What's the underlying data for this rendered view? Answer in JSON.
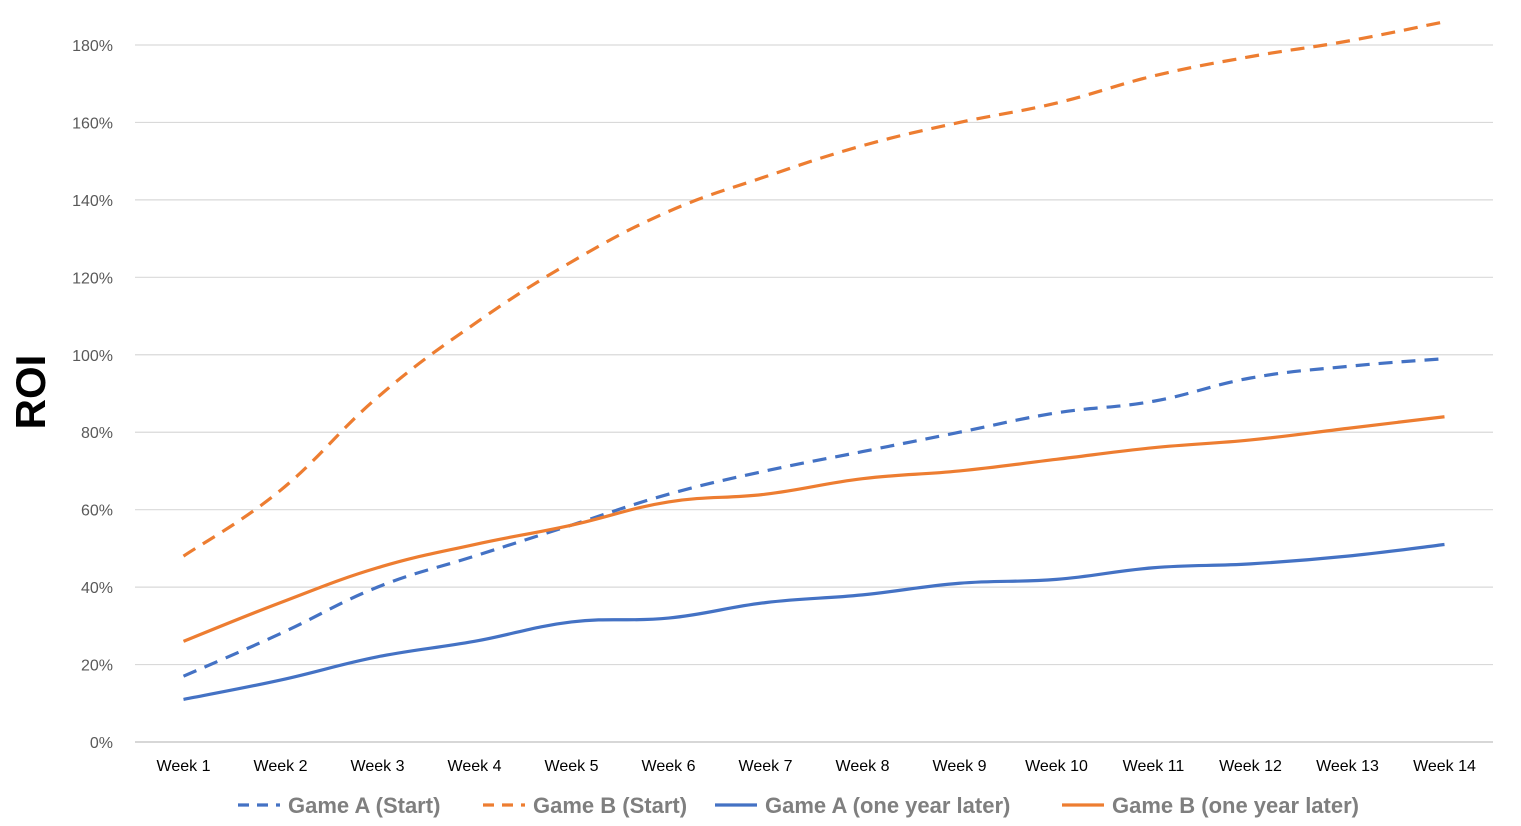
{
  "chart_data": {
    "type": "line",
    "title": "",
    "xlabel": "",
    "ylabel": "ROI",
    "ylim": [
      0,
      180
    ],
    "y_tick_step": 20,
    "y_unit_suffix": "%",
    "y_ticks": [
      "0%",
      "20%",
      "40%",
      "60%",
      "80%",
      "100%",
      "120%",
      "140%",
      "160%",
      "180%"
    ],
    "grid": true,
    "legend_position": "bottom",
    "categories": [
      "Week 1",
      "Week 2",
      "Week 3",
      "Week 4",
      "Week 5",
      "Week 6",
      "Week 7",
      "Week 8",
      "Week 9",
      "Week 10",
      "Week 11",
      "Week 12",
      "Week 13",
      "Week 14"
    ],
    "series": [
      {
        "name": "Game A (Start)",
        "color": "#4472c4",
        "dashed": true,
        "values": [
          17,
          28,
          40,
          48,
          56,
          64,
          70,
          75,
          80,
          85,
          88,
          94,
          97,
          99
        ]
      },
      {
        "name": "Game B (Start)",
        "color": "#ed7d31",
        "dashed": true,
        "values": [
          48,
          65,
          89,
          108,
          124,
          137,
          146,
          154,
          160,
          165,
          172,
          177,
          181,
          186
        ]
      },
      {
        "name": "Game A (one year later)",
        "color": "#4472c4",
        "dashed": false,
        "values": [
          11,
          16,
          22,
          26,
          31,
          32,
          36,
          38,
          41,
          42,
          45,
          46,
          48,
          51
        ]
      },
      {
        "name": "Game B (one year later)",
        "color": "#ed7d31",
        "dashed": false,
        "values": [
          26,
          36,
          45,
          51,
          56,
          62,
          64,
          68,
          70,
          73,
          76,
          78,
          81,
          84
        ]
      }
    ]
  }
}
